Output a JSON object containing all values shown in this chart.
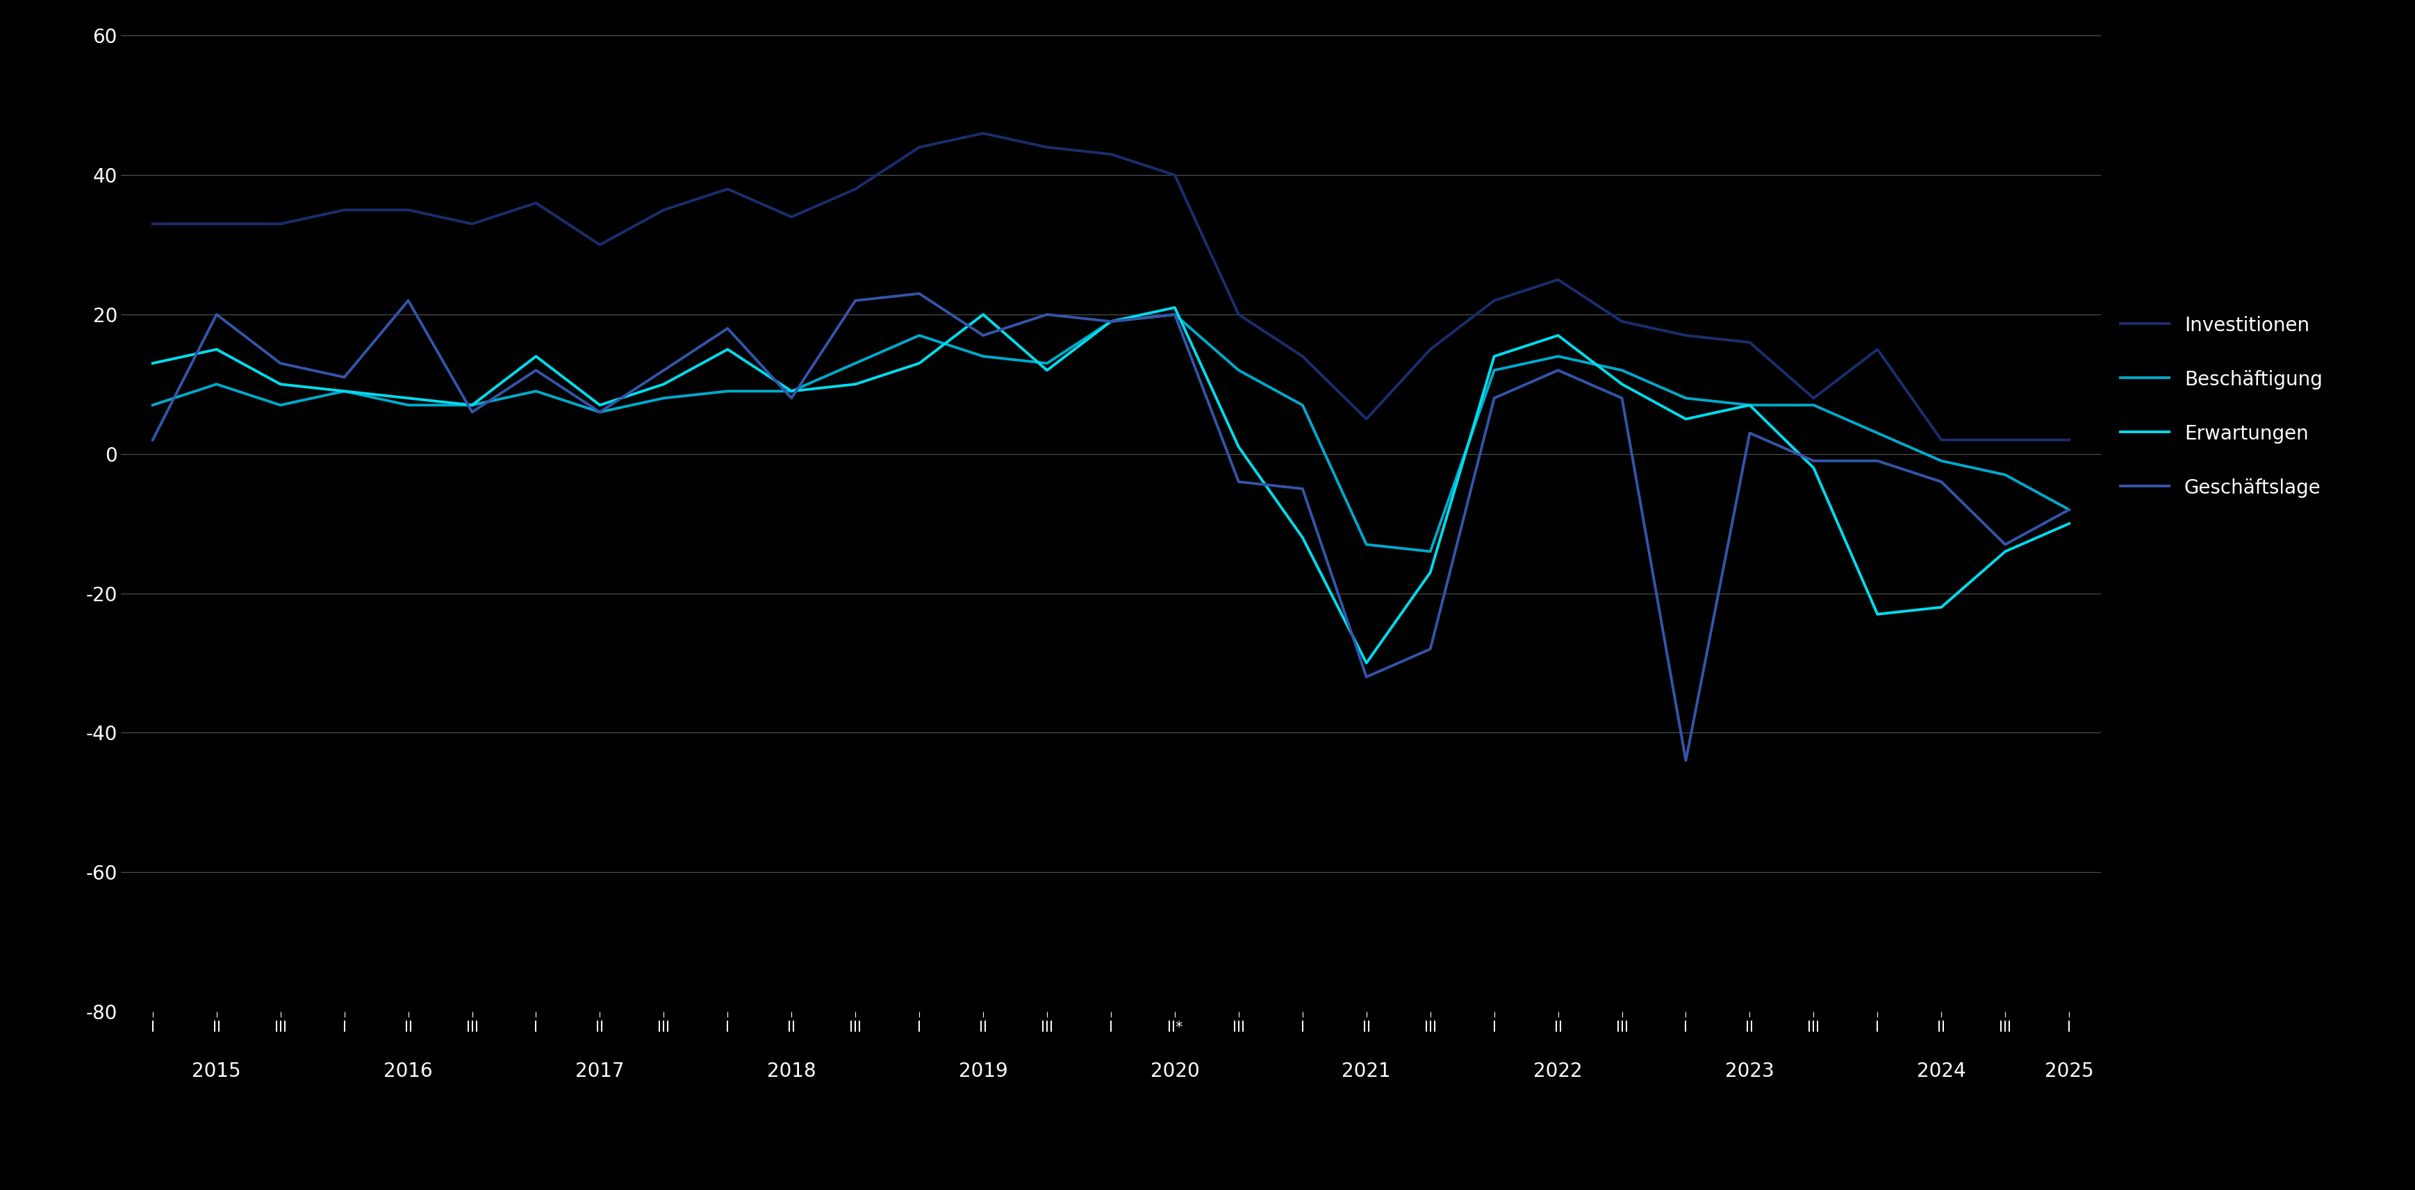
{
  "background_color": "#000000",
  "text_color": "#ffffff",
  "grid_color": "#555555",
  "line_colors": {
    "Investitionen": "#1a2e6e",
    "Beschaeftigung": "#00aacc",
    "Erwartungen": "#00ddee",
    "Geschaeftslage": "#3355aa"
  },
  "legend_labels": [
    "Investitionen",
    "Beschäftigung",
    "Erwartungen",
    "Geschäftslage"
  ],
  "ylim": [
    -80,
    60
  ],
  "yticks": [
    -80,
    -60,
    -40,
    -20,
    0,
    20,
    40,
    60
  ],
  "x_labels": [
    "I",
    "II",
    "III",
    "I",
    "II",
    "III",
    "I",
    "II",
    "III",
    "I",
    "II",
    "III",
    "I",
    "II",
    "III",
    "I",
    "II*",
    "III",
    "I",
    "II",
    "III",
    "I",
    "II",
    "III",
    "I",
    "II",
    "III",
    "I",
    "II",
    "III",
    "I"
  ],
  "year_labels": [
    "2015",
    "2016",
    "2017",
    "2018",
    "2019",
    "2020",
    "2021",
    "2022",
    "2023",
    "2024",
    "2025"
  ],
  "year_centers": [
    1,
    4,
    7,
    10,
    13,
    16,
    19,
    22,
    25,
    28,
    30
  ],
  "series": {
    "Investitionen": [
      33,
      33,
      33,
      35,
      35,
      33,
      36,
      30,
      35,
      38,
      34,
      38,
      44,
      46,
      44,
      43,
      40,
      20,
      14,
      5,
      15,
      22,
      25,
      19,
      17,
      16,
      8,
      15,
      2,
      2,
      2
    ],
    "Beschaeftigung": [
      7,
      10,
      7,
      9,
      7,
      7,
      9,
      6,
      8,
      9,
      9,
      13,
      17,
      14,
      13,
      19,
      20,
      12,
      7,
      -13,
      -14,
      12,
      14,
      12,
      8,
      7,
      7,
      3,
      -1,
      -3,
      -8
    ],
    "Erwartungen": [
      13,
      15,
      10,
      9,
      8,
      7,
      14,
      7,
      10,
      15,
      9,
      10,
      13,
      20,
      12,
      19,
      21,
      1,
      -12,
      -30,
      -17,
      14,
      17,
      10,
      5,
      7,
      -2,
      -23,
      -22,
      -14,
      -10
    ],
    "Geschaeftslage": [
      2,
      20,
      13,
      11,
      22,
      6,
      12,
      6,
      12,
      18,
      8,
      22,
      23,
      17,
      20,
      19,
      20,
      -4,
      -5,
      -32,
      -28,
      8,
      12,
      8,
      -44,
      3,
      -1,
      -1,
      -4,
      -13,
      -8
    ]
  }
}
